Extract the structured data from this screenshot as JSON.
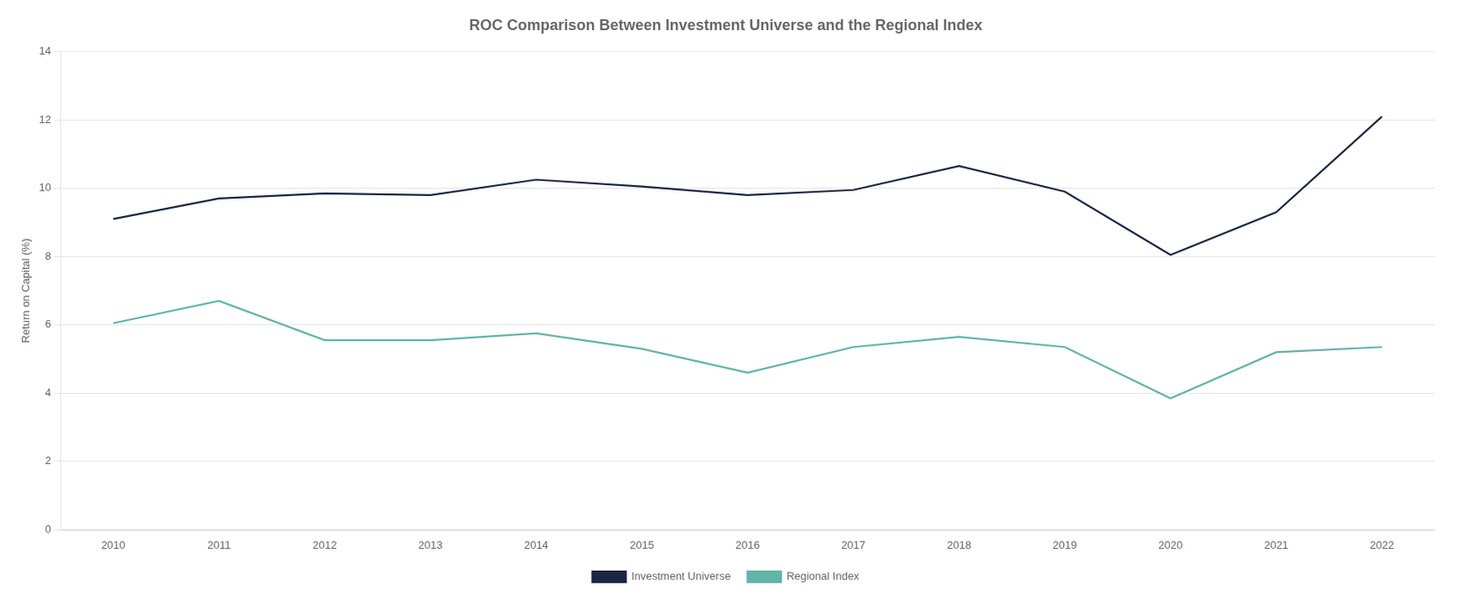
{
  "chart_data": {
    "type": "line",
    "title": "ROC Comparison Between Investment Universe and the Regional Index",
    "y_label": "Return on Capital (%)",
    "x": [
      2010,
      2011,
      2012,
      2013,
      2014,
      2015,
      2016,
      2017,
      2018,
      2019,
      2020,
      2021,
      2022
    ],
    "series": [
      {
        "name": "Investment Universe",
        "color": "#1a2744",
        "values": [
          9.1,
          9.7,
          9.85,
          9.8,
          10.25,
          10.05,
          9.8,
          9.95,
          10.65,
          9.9,
          8.05,
          9.3,
          12.1
        ]
      },
      {
        "name": "Regional Index",
        "color": "#5fb5a8",
        "values": [
          6.05,
          6.7,
          5.55,
          5.55,
          5.75,
          5.3,
          4.6,
          5.35,
          5.65,
          5.35,
          3.85,
          5.2,
          5.35
        ]
      }
    ],
    "xlim": [
      2009.5,
      2022.5
    ],
    "xticks": [
      2010,
      2011,
      2012,
      2013,
      2014,
      2015,
      2016,
      2017,
      2018,
      2019,
      2020,
      2021,
      2022
    ],
    "ylim": [
      0,
      14
    ],
    "yticks": [
      0,
      2,
      4,
      6,
      8,
      10,
      12,
      14
    ],
    "grid": "y",
    "legend": "bottom"
  }
}
